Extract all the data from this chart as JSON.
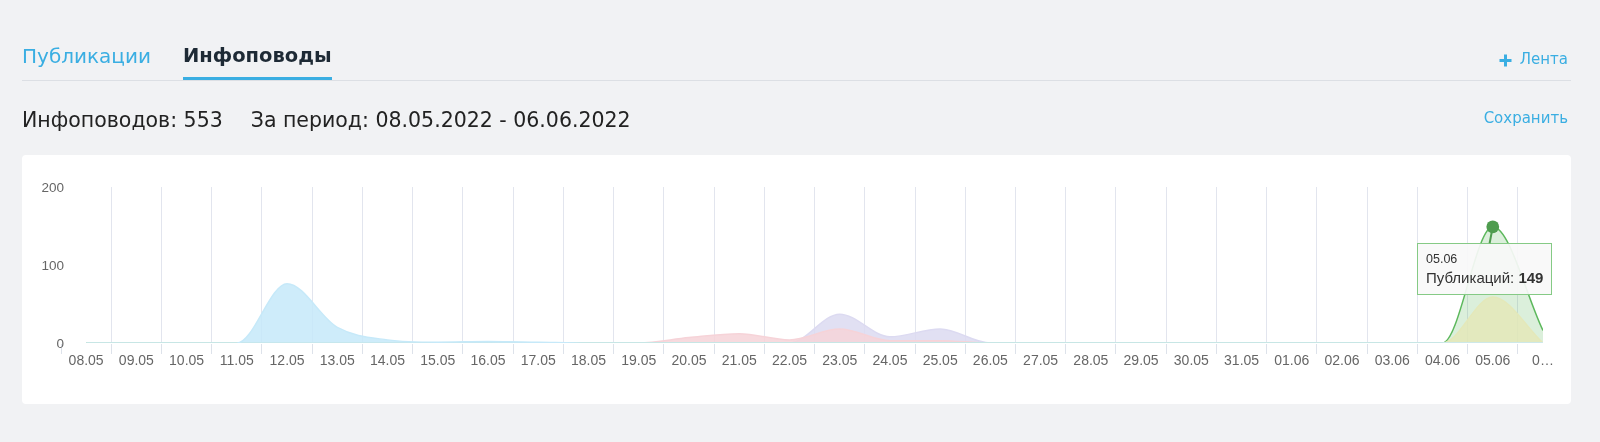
{
  "chart_data": {
    "type": "area",
    "title": "Инфоповодов: 553",
    "subtitle": "За период: 08.05.2022 - 06.06.2022",
    "annotations": [
      "Публикации",
      "Инфоповоды",
      "Лента",
      "Сохранить",
      {
        "text": "05.06\nПубликаций: 149",
        "x": "05.06",
        "y": 149
      }
    ],
    "categories": [
      "08.05",
      "09.05",
      "10.05",
      "11.05",
      "12.05",
      "13.05",
      "14.05",
      "15.05",
      "16.05",
      "17.05",
      "18.05",
      "19.05",
      "20.05",
      "21.05",
      "22.05",
      "23.05",
      "24.05",
      "25.05",
      "26.05",
      "27.05",
      "28.05",
      "29.05",
      "30.05",
      "31.05",
      "01.06",
      "02.06",
      "03.06",
      "04.06",
      "05.06",
      "0…"
    ],
    "series": [
      {
        "color": "#dcdaf1",
        "values": [
          0,
          0,
          0,
          0,
          0,
          0,
          0,
          0,
          0,
          0,
          0,
          0,
          0,
          0,
          0,
          37,
          8,
          18,
          0,
          0,
          0,
          0,
          0,
          0,
          0,
          0,
          0,
          0,
          0,
          0
        ]
      },
      {
        "color": "#f6d3d8",
        "values": [
          0,
          0,
          0,
          0,
          0,
          0,
          0,
          0,
          0,
          0,
          0,
          0,
          7,
          12,
          4,
          18,
          3,
          3,
          0,
          0,
          0,
          0,
          0,
          0,
          0,
          0,
          0,
          0,
          0,
          0
        ]
      },
      {
        "color": "#5cb85c",
        "values": [
          0,
          0,
          0,
          0,
          0,
          0,
          0,
          0,
          0,
          0,
          0,
          0,
          0,
          0,
          0,
          0,
          0,
          0,
          0,
          0,
          0,
          0,
          0,
          0,
          0,
          0,
          0,
          0,
          149,
          16
        ]
      },
      {
        "color": "#e4e8b9",
        "values": [
          0,
          0,
          0,
          0,
          0,
          0,
          0,
          0,
          0,
          0,
          0,
          0,
          0,
          0,
          0,
          0,
          0,
          0,
          0,
          0,
          0,
          0,
          0,
          0,
          0,
          0,
          0,
          0,
          59,
          0
        ]
      },
      {
        "color": "#c6e9f9",
        "values": [
          0,
          0,
          0,
          0,
          76,
          20,
          4,
          1,
          2,
          1,
          0,
          0,
          0,
          0,
          0,
          0,
          0,
          0,
          0,
          0,
          0,
          0,
          0,
          0,
          0,
          0,
          0,
          0,
          0,
          0
        ]
      }
    ],
    "ylim": [
      0,
      200
    ],
    "yticks": [
      0,
      100,
      200
    ],
    "grid": "x"
  }
}
